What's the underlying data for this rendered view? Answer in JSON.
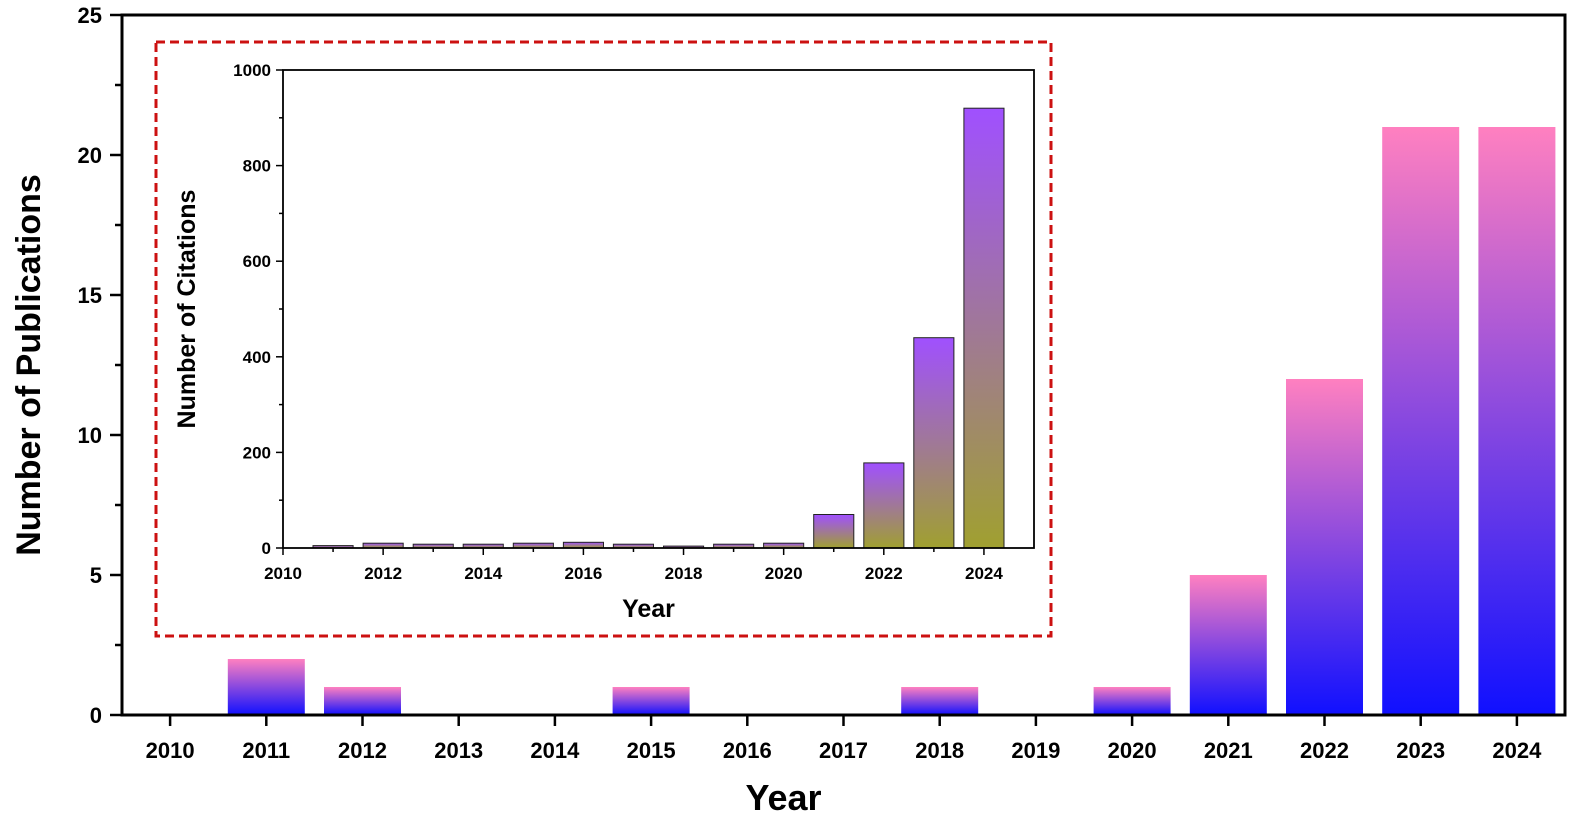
{
  "chart_data": [
    {
      "type": "bar",
      "role": "main",
      "xlabel": "Year",
      "ylabel": "Number of Publications",
      "ylim": [
        0,
        25
      ],
      "yticks": [
        0,
        5,
        10,
        15,
        20,
        25
      ],
      "categories": [
        "2010",
        "2011",
        "2012",
        "2013",
        "2014",
        "2015",
        "2016",
        "2017",
        "2018",
        "2019",
        "2020",
        "2021",
        "2022",
        "2023",
        "2024"
      ],
      "values": [
        0,
        2,
        1,
        0,
        0,
        1,
        0,
        0,
        1,
        0,
        1,
        5,
        12,
        21,
        21
      ],
      "gradient": {
        "top": "#ff80c0",
        "bottom": "#1010ff"
      }
    },
    {
      "type": "bar",
      "role": "inset",
      "xlabel": "Year",
      "ylabel": "Number of Citations",
      "ylim": [
        0,
        1000
      ],
      "yticks": [
        0,
        200,
        400,
        600,
        800,
        1000
      ],
      "xticks": [
        "2010",
        "2012",
        "2014",
        "2016",
        "2018",
        "2020",
        "2022",
        "2024"
      ],
      "categories": [
        "2011",
        "2012",
        "2013",
        "2014",
        "2015",
        "2016",
        "2017",
        "2018",
        "2019",
        "2020",
        "2021",
        "2022",
        "2023",
        "2024"
      ],
      "values": [
        5,
        10,
        8,
        8,
        10,
        12,
        8,
        4,
        8,
        10,
        70,
        178,
        440,
        920
      ],
      "gradient": {
        "top": "#a050ff",
        "bottom": "#a0a030"
      },
      "frame_color": "#cc1111"
    }
  ]
}
